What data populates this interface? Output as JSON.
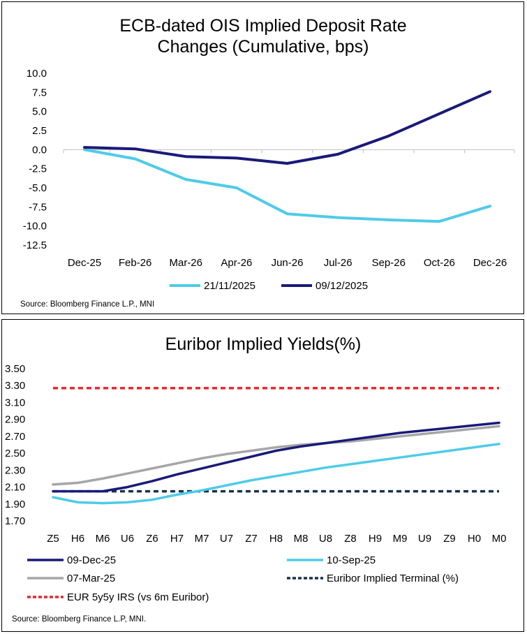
{
  "chart_data": [
    {
      "type": "line",
      "title_lines": [
        "ECB-dated OIS Implied Deposit Rate",
        "Changes (Cumulative, bps)"
      ],
      "categories": [
        "Dec-25",
        "Feb-26",
        "Mar-26",
        "Apr-26",
        "Jun-26",
        "Jul-26",
        "Sep-26",
        "Oct-26",
        "Dec-26"
      ],
      "ylim": [
        -12.5,
        10.0
      ],
      "yticks": [
        "10.0",
        "7.5",
        "5.0",
        "2.5",
        "0.0",
        "-2.5",
        "-5.0",
        "-7.5",
        "-10.0",
        "-12.5"
      ],
      "series": [
        {
          "name": "21/11/2025",
          "color": "#4fcbe8",
          "dash": "",
          "values": [
            0.0,
            -1.2,
            -3.9,
            -5.0,
            -8.4,
            -8.9,
            -9.2,
            -9.4,
            -7.4
          ]
        },
        {
          "name": "09/12/2025",
          "color": "#1a1a78",
          "dash": "",
          "values": [
            0.3,
            0.1,
            -0.9,
            -1.1,
            -1.8,
            -0.6,
            1.8,
            4.7,
            7.6
          ]
        }
      ],
      "source": "Source: Bloomberg Finance L.P., MNI"
    },
    {
      "type": "line",
      "title_lines": [
        "Euribor Implied Yields(%)"
      ],
      "categories": [
        "Z5",
        "H6",
        "M6",
        "U6",
        "Z6",
        "H7",
        "M7",
        "U7",
        "Z7",
        "H8",
        "M8",
        "U8",
        "Z8",
        "H9",
        "M9",
        "U9",
        "Z9",
        "H0",
        "M0"
      ],
      "ylim": [
        1.7,
        3.5
      ],
      "yticks": [
        "3.50",
        "3.30",
        "3.10",
        "2.90",
        "2.70",
        "2.50",
        "2.30",
        "2.10",
        "1.90",
        "1.70"
      ],
      "series": [
        {
          "name": "09-Dec-25",
          "color": "#1a1a78",
          "dash": "",
          "values": [
            2.05,
            2.05,
            2.05,
            2.1,
            2.17,
            2.25,
            2.32,
            2.39,
            2.46,
            2.53,
            2.58,
            2.62,
            2.66,
            2.7,
            2.74,
            2.77,
            2.8,
            2.83,
            2.86
          ]
        },
        {
          "name": "10-Sep-25",
          "color": "#4fcbe8",
          "dash": "",
          "values": [
            1.98,
            1.92,
            1.91,
            1.92,
            1.95,
            2.01,
            2.06,
            2.12,
            2.18,
            2.23,
            2.28,
            2.33,
            2.37,
            2.41,
            2.45,
            2.49,
            2.53,
            2.57,
            2.61
          ]
        },
        {
          "name": "07-Mar-25",
          "color": "#a6a6a6",
          "dash": "",
          "values": [
            2.13,
            2.15,
            2.2,
            2.26,
            2.32,
            2.38,
            2.44,
            2.49,
            2.53,
            2.57,
            2.6,
            2.62,
            2.64,
            2.67,
            2.7,
            2.73,
            2.76,
            2.79,
            2.82
          ]
        },
        {
          "name": "Euribor Implied Terminal (%)",
          "color": "#17324d",
          "dash": "7,5",
          "values": [
            2.05,
            2.05,
            2.05,
            2.05,
            2.05,
            2.05,
            2.05,
            2.05,
            2.05,
            2.05,
            2.05,
            2.05,
            2.05,
            2.05,
            2.05,
            2.05,
            2.05,
            2.05,
            2.05
          ]
        },
        {
          "name": "EUR 5y5y IRS (vs 6m Euribor)",
          "color": "#e8262b",
          "dash": "7,5",
          "values": [
            3.27,
            3.27,
            3.27,
            3.27,
            3.27,
            3.27,
            3.27,
            3.27,
            3.27,
            3.27,
            3.27,
            3.27,
            3.27,
            3.27,
            3.27,
            3.27,
            3.27,
            3.27,
            3.27
          ]
        }
      ],
      "source": "Source: Bloomberg Finance L.P, MNI."
    }
  ]
}
